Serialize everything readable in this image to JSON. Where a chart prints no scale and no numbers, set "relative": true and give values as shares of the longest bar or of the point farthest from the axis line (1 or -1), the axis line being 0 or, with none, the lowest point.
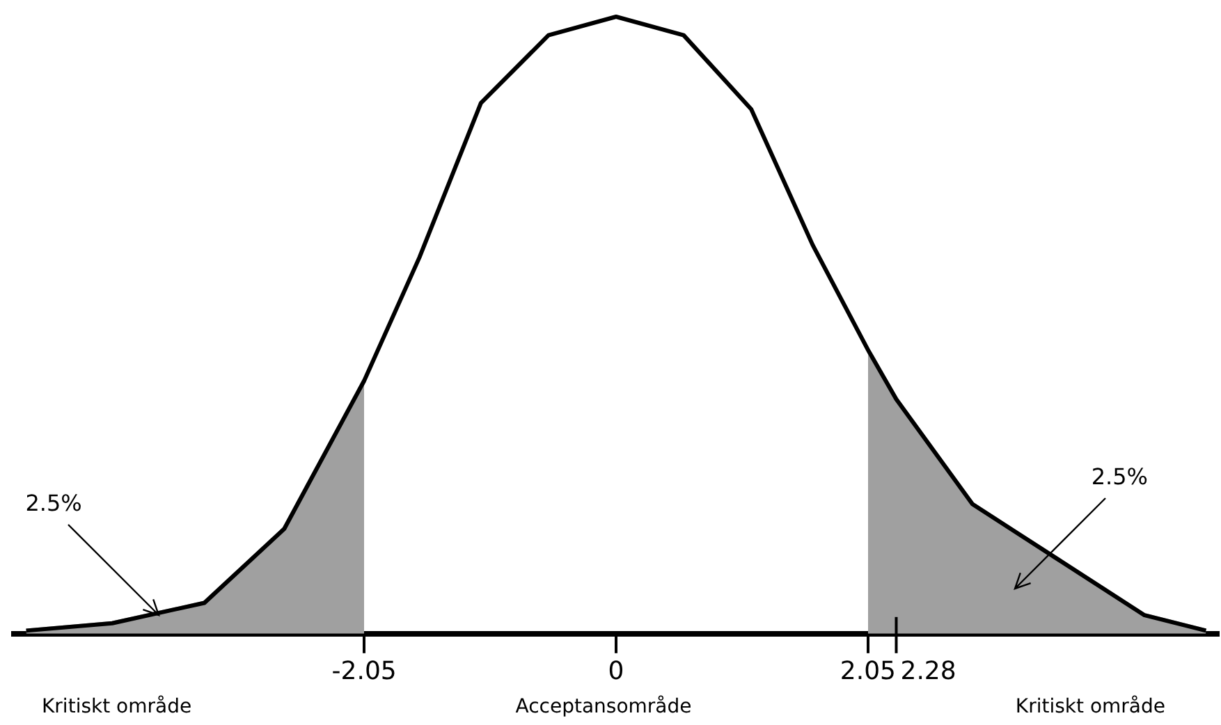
{
  "chart_data": {
    "type": "line",
    "relative": true,
    "legend": false,
    "grid": false,
    "tick_labels": "x",
    "marker": "none",
    "xlim": [
      -4.9,
      4.9
    ],
    "xticks": [
      -2.05,
      0,
      2.05
    ],
    "ref_lines": [
      {
        "axis": "x",
        "value": 2.28,
        "label": "2.28"
      }
    ],
    "series": [
      {
        "type": "line",
        "color": "#000000",
        "x": [
          -4.8,
          -4.1,
          -3.35,
          -2.7,
          -2.05,
          -1.6,
          -1.1,
          -0.55,
          0,
          0.55,
          1.1,
          1.6,
          2.05,
          2.28,
          2.9,
          3.6,
          4.3,
          4.8
        ],
        "values": [
          0.005,
          0.017,
          0.05,
          0.17,
          0.41,
          0.61,
          0.86,
          0.97,
          1,
          0.97,
          0.85,
          0.63,
          0.46,
          0.38,
          0.21,
          0.12,
          0.03,
          0.005
        ]
      },
      {
        "type": "area",
        "color": "#a0a0a0",
        "x": [
          -4.8,
          -4.1,
          -3.35,
          -2.7,
          -2.05
        ],
        "values": [
          0.005,
          0.017,
          0.05,
          0.17,
          0.41
        ]
      },
      {
        "type": "area",
        "color": "#a0a0a0",
        "x": [
          2.05,
          2.28,
          2.9,
          3.6,
          4.3,
          4.8
        ],
        "values": [
          0.46,
          0.38,
          0.21,
          0.12,
          0.03,
          0.005
        ]
      }
    ],
    "annotations": [
      "2.5%",
      "2.5%",
      "Kritiskt område",
      "Acceptansområde",
      "Kritiskt område"
    ]
  }
}
